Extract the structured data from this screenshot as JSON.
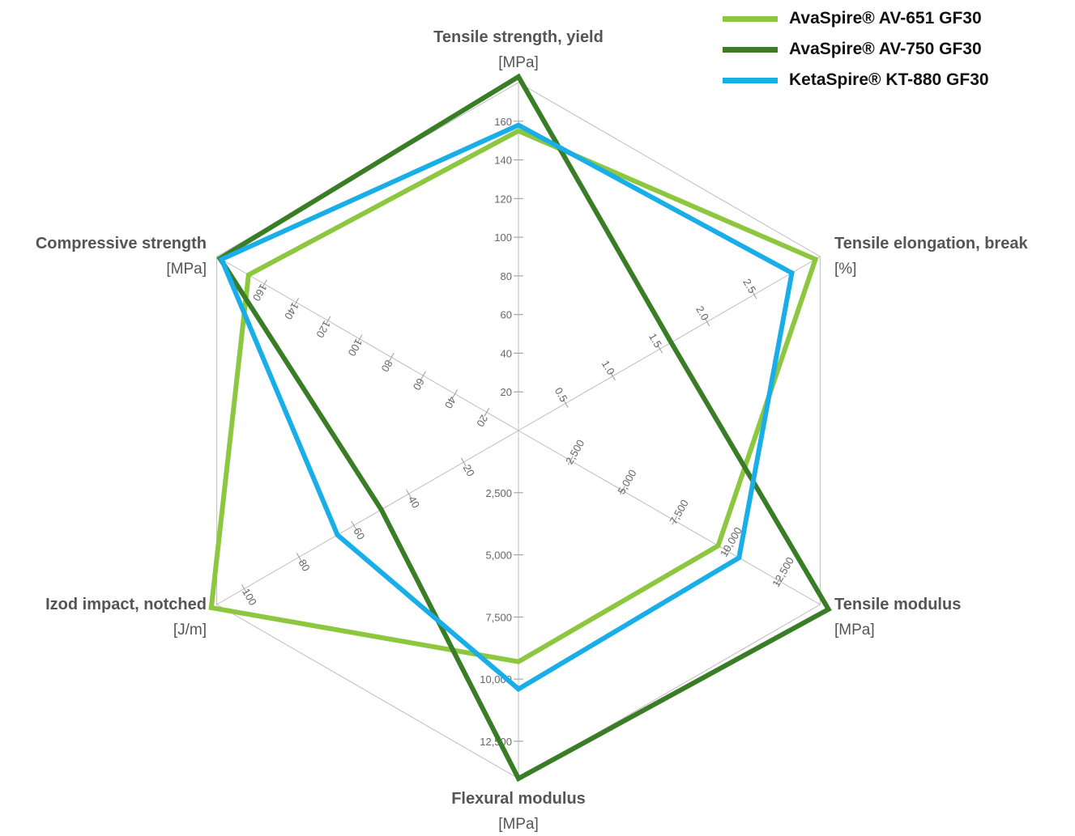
{
  "chart_data": {
    "type": "radar",
    "axes": [
      {
        "id": "tensile-strength",
        "label": "Tensile strength, yield",
        "unit": "[MPa]",
        "max": 180,
        "ticks": [
          20,
          40,
          60,
          80,
          100,
          120,
          140,
          160
        ],
        "tick_labels": [
          "20",
          "40",
          "60",
          "80",
          "100",
          "120",
          "140",
          "160"
        ]
      },
      {
        "id": "tensile-elongation",
        "label": "Tensile elongation, break",
        "unit": "[%]",
        "max": 3.2,
        "ticks": [
          0.5,
          1.0,
          1.5,
          2.0,
          2.5
        ],
        "tick_labels": [
          "0.5",
          "1.0",
          "1.5",
          "2.0",
          "2.5"
        ]
      },
      {
        "id": "tensile-modulus",
        "label": "Tensile modulus",
        "unit": "[MPa]",
        "max": 14500,
        "ticks": [
          2500,
          5000,
          7500,
          10000,
          12500
        ],
        "tick_labels": [
          "2,500",
          "5,000",
          "7,500",
          "10,000",
          "12,500"
        ]
      },
      {
        "id": "flexural-modulus",
        "label": "Flexural modulus",
        "unit": "[MPa]",
        "max": 14000,
        "ticks": [
          2500,
          5000,
          7500,
          10000,
          12500
        ],
        "tick_labels": [
          "2,500",
          "5,000",
          "7,500",
          "10,000",
          "12,500"
        ]
      },
      {
        "id": "izod-impact",
        "label": "Izod impact, notched",
        "unit": "[J/m]",
        "max": 110,
        "ticks": [
          20,
          40,
          60,
          80,
          100
        ],
        "tick_labels": [
          "20",
          "40",
          "60",
          "80",
          "100"
        ]
      },
      {
        "id": "compressive-strength",
        "label": "Compressive strength",
        "unit": "[MPa]",
        "max": 190,
        "ticks": [
          20,
          40,
          60,
          80,
          100,
          120,
          140,
          160
        ],
        "tick_labels": [
          "20",
          "40",
          "60",
          "80",
          "100",
          "120",
          "140",
          "160"
        ]
      }
    ],
    "series": [
      {
        "name": "AvaSpire® AV-651 GF30",
        "color": "#8dc63f",
        "values": [
          155,
          3.15,
          9600,
          9300,
          112,
          170
        ]
      },
      {
        "name": "AvaSpire® AV-750 GF30",
        "color": "#3a7d27",
        "values": [
          183,
          1.62,
          14900,
          14000,
          50,
          188
        ]
      },
      {
        "name": "KetaSpire® KT-880 GF30",
        "color": "#19aee8",
        "values": [
          158,
          2.9,
          10600,
          10400,
          66,
          187
        ]
      }
    ],
    "grid": true,
    "legend_position": "top-right"
  }
}
